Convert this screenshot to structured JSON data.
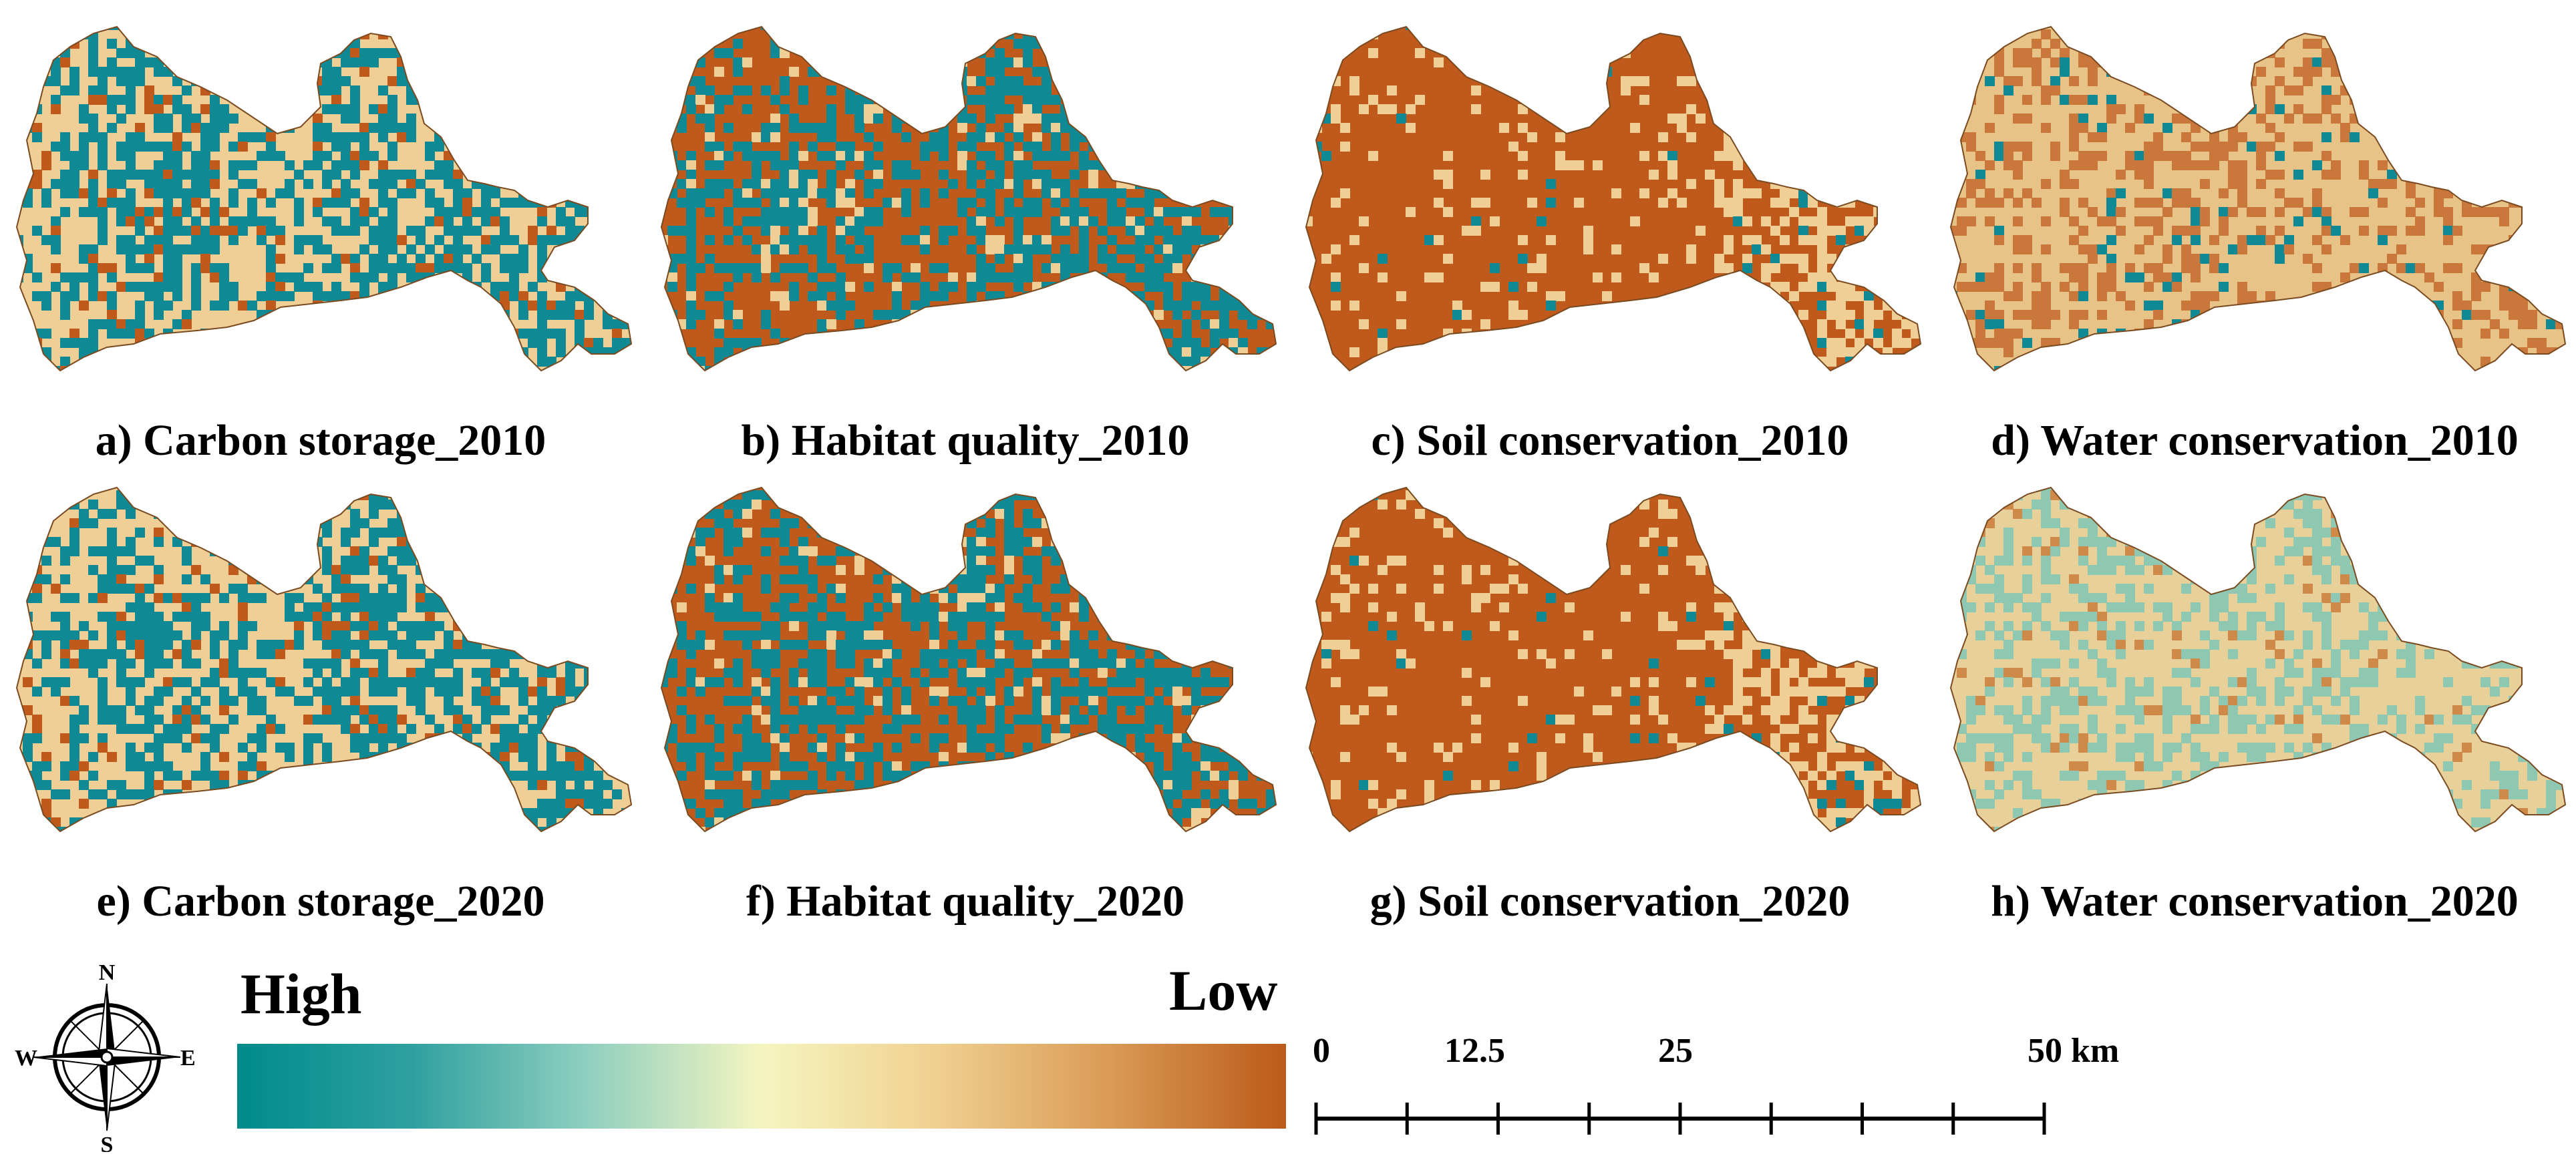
{
  "panels": [
    {
      "id": "a",
      "caption": "a) Carbon storage_2010",
      "theme": "carbon"
    },
    {
      "id": "b",
      "caption": "b) Habitat quality_2010",
      "theme": "habitat"
    },
    {
      "id": "c",
      "caption": "c) Soil conservation_2010",
      "theme": "soil"
    },
    {
      "id": "d",
      "caption": "d) Water conservation_2010",
      "theme": "water2010"
    },
    {
      "id": "e",
      "caption": "e) Carbon storage_2020",
      "theme": "carbon"
    },
    {
      "id": "f",
      "caption": "f) Habitat quality_2020",
      "theme": "habitat"
    },
    {
      "id": "g",
      "caption": "g) Soil conservation_2020",
      "theme": "soil"
    },
    {
      "id": "h",
      "caption": "h) Water conservation_2020",
      "theme": "water2020"
    }
  ],
  "legend": {
    "high_label": "High",
    "low_label": "Low",
    "colors": [
      "#008b8b",
      "#2fa0a0",
      "#8fcfbf",
      "#f5f5c0",
      "#f0d090",
      "#d99a55",
      "#bb5a1a"
    ]
  },
  "compass": {
    "n": "N",
    "s": "S",
    "e": "E",
    "w": "W"
  },
  "scale_bar": {
    "labels": [
      "0",
      "12.5",
      "25",
      "50 km"
    ],
    "max_km": 50,
    "subdivisions": 8
  },
  "colors": {
    "teal": "#0f8a94",
    "beige": "#efcf96",
    "brown": "#c05a1c",
    "pale": "#f3efbf",
    "outline": "#7a4a20"
  }
}
